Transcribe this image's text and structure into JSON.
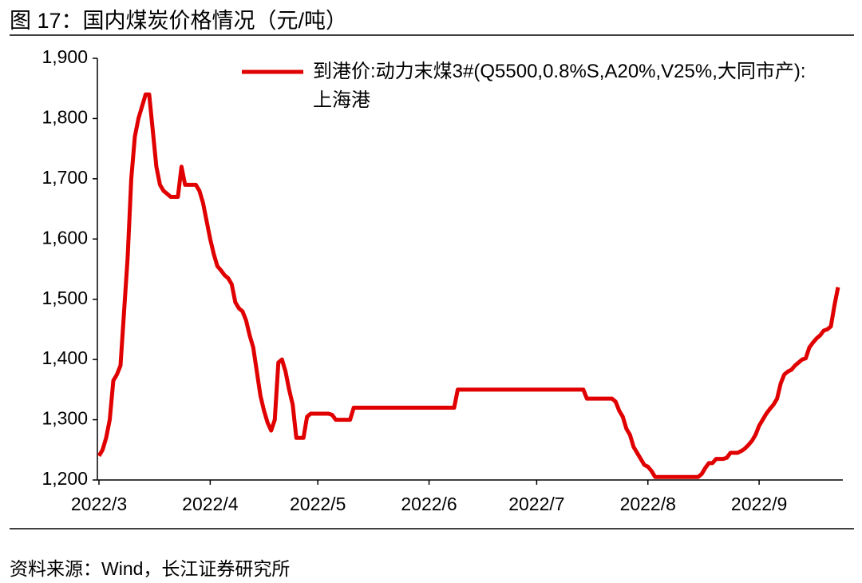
{
  "title": "图 17：国内煤炭价格情况（元/吨）",
  "source": "资料来源：Wind，长江证券研究所",
  "chart_data": {
    "type": "line",
    "categories": [
      "2022/3",
      null,
      null,
      null,
      null,
      null,
      null,
      null,
      null,
      null,
      null,
      null,
      null,
      null,
      null,
      null,
      null,
      null,
      null,
      null,
      null,
      null,
      null,
      null,
      null,
      null,
      null,
      null,
      null,
      null,
      null,
      "2022/4",
      null,
      null,
      null,
      null,
      null,
      null,
      null,
      null,
      null,
      null,
      null,
      null,
      null,
      null,
      null,
      null,
      null,
      null,
      null,
      null,
      null,
      null,
      null,
      null,
      null,
      null,
      null,
      null,
      null,
      "2022/5",
      null,
      null,
      null,
      null,
      null,
      null,
      null,
      null,
      null,
      null,
      null,
      null,
      null,
      null,
      null,
      null,
      null,
      null,
      null,
      null,
      null,
      null,
      null,
      null,
      null,
      null,
      null,
      null,
      null,
      null,
      "2022/6",
      null,
      null,
      null,
      null,
      null,
      null,
      null,
      null,
      null,
      null,
      null,
      null,
      null,
      null,
      null,
      null,
      null,
      null,
      null,
      null,
      null,
      null,
      null,
      null,
      null,
      null,
      null,
      null,
      null,
      "2022/7",
      null,
      null,
      null,
      null,
      null,
      null,
      null,
      null,
      null,
      null,
      null,
      null,
      null,
      null,
      null,
      null,
      null,
      null,
      null,
      null,
      null,
      null,
      null,
      null,
      null,
      null,
      null,
      null,
      null,
      null,
      "2022/8",
      null,
      null,
      null,
      null,
      null,
      null,
      null,
      null,
      null,
      null,
      null,
      null,
      null,
      null,
      null,
      null,
      null,
      null,
      null,
      null,
      null,
      null,
      null,
      null,
      null,
      null,
      null,
      null,
      null,
      null,
      "2022/9",
      null,
      null,
      null,
      null,
      null,
      null,
      null,
      null,
      null,
      null,
      null,
      null,
      null,
      null,
      null,
      null,
      null,
      null,
      null,
      null,
      null,
      null
    ],
    "series": [
      {
        "name": "到港价:动力末煤3#(Q5500,0.8%S,A20%,V25%,大同市产):上海港",
        "color": "#e00000",
        "values": [
          1240,
          1250,
          1270,
          1300,
          1365,
          1375,
          1390,
          1480,
          1570,
          1700,
          1770,
          1800,
          1820,
          1840,
          1840,
          1780,
          1720,
          1690,
          1680,
          1675,
          1670,
          1670,
          1670,
          1720,
          1690,
          1690,
          1690,
          1690,
          1680,
          1660,
          1630,
          1600,
          1575,
          1555,
          1548,
          1540,
          1535,
          1525,
          1495,
          1485,
          1480,
          1465,
          1440,
          1420,
          1380,
          1340,
          1315,
          1295,
          1282,
          1300,
          1395,
          1400,
          1380,
          1350,
          1325,
          1270,
          1270,
          1270,
          1305,
          1310,
          1310,
          1310,
          1310,
          1310,
          1310,
          1308,
          1300,
          1300,
          1300,
          1300,
          1300,
          1320,
          1320,
          1320,
          1320,
          1320,
          1320,
          1320,
          1320,
          1320,
          1320,
          1320,
          1320,
          1320,
          1320,
          1320,
          1320,
          1320,
          1320,
          1320,
          1320,
          1320,
          1320,
          1320,
          1320,
          1320,
          1320,
          1320,
          1320,
          1320,
          1350,
          1350,
          1350,
          1350,
          1350,
          1350,
          1350,
          1350,
          1350,
          1350,
          1350,
          1350,
          1350,
          1350,
          1350,
          1350,
          1350,
          1350,
          1350,
          1350,
          1350,
          1350,
          1350,
          1350,
          1350,
          1350,
          1350,
          1350,
          1350,
          1350,
          1350,
          1350,
          1350,
          1350,
          1350,
          1350,
          1335,
          1335,
          1335,
          1335,
          1335,
          1335,
          1335,
          1335,
          1330,
          1315,
          1305,
          1285,
          1275,
          1255,
          1245,
          1235,
          1225,
          1222,
          1215,
          1205,
          1205,
          1205,
          1205,
          1205,
          1205,
          1205,
          1205,
          1205,
          1205,
          1205,
          1205,
          1205,
          1210,
          1220,
          1228,
          1228,
          1235,
          1235,
          1235,
          1237,
          1245,
          1245,
          1245,
          1248,
          1252,
          1258,
          1265,
          1275,
          1290,
          1300,
          1310,
          1318,
          1325,
          1335,
          1360,
          1375,
          1380,
          1383,
          1390,
          1395,
          1400,
          1402,
          1420,
          1428,
          1435,
          1440,
          1448,
          1450,
          1455,
          1490,
          1520
        ]
      }
    ],
    "ylim": [
      1200,
      1900
    ],
    "yticks": [
      {
        "value": 1200,
        "label": "1,200"
      },
      {
        "value": 1300,
        "label": "1,300"
      },
      {
        "value": 1400,
        "label": "1,400"
      },
      {
        "value": 1500,
        "label": "1,500"
      },
      {
        "value": 1600,
        "label": "1,600"
      },
      {
        "value": 1700,
        "label": "1,700"
      },
      {
        "value": 1800,
        "label": "1,800"
      },
      {
        "value": 1900,
        "label": "1,900"
      }
    ],
    "grid": false,
    "legend": "top-right"
  }
}
